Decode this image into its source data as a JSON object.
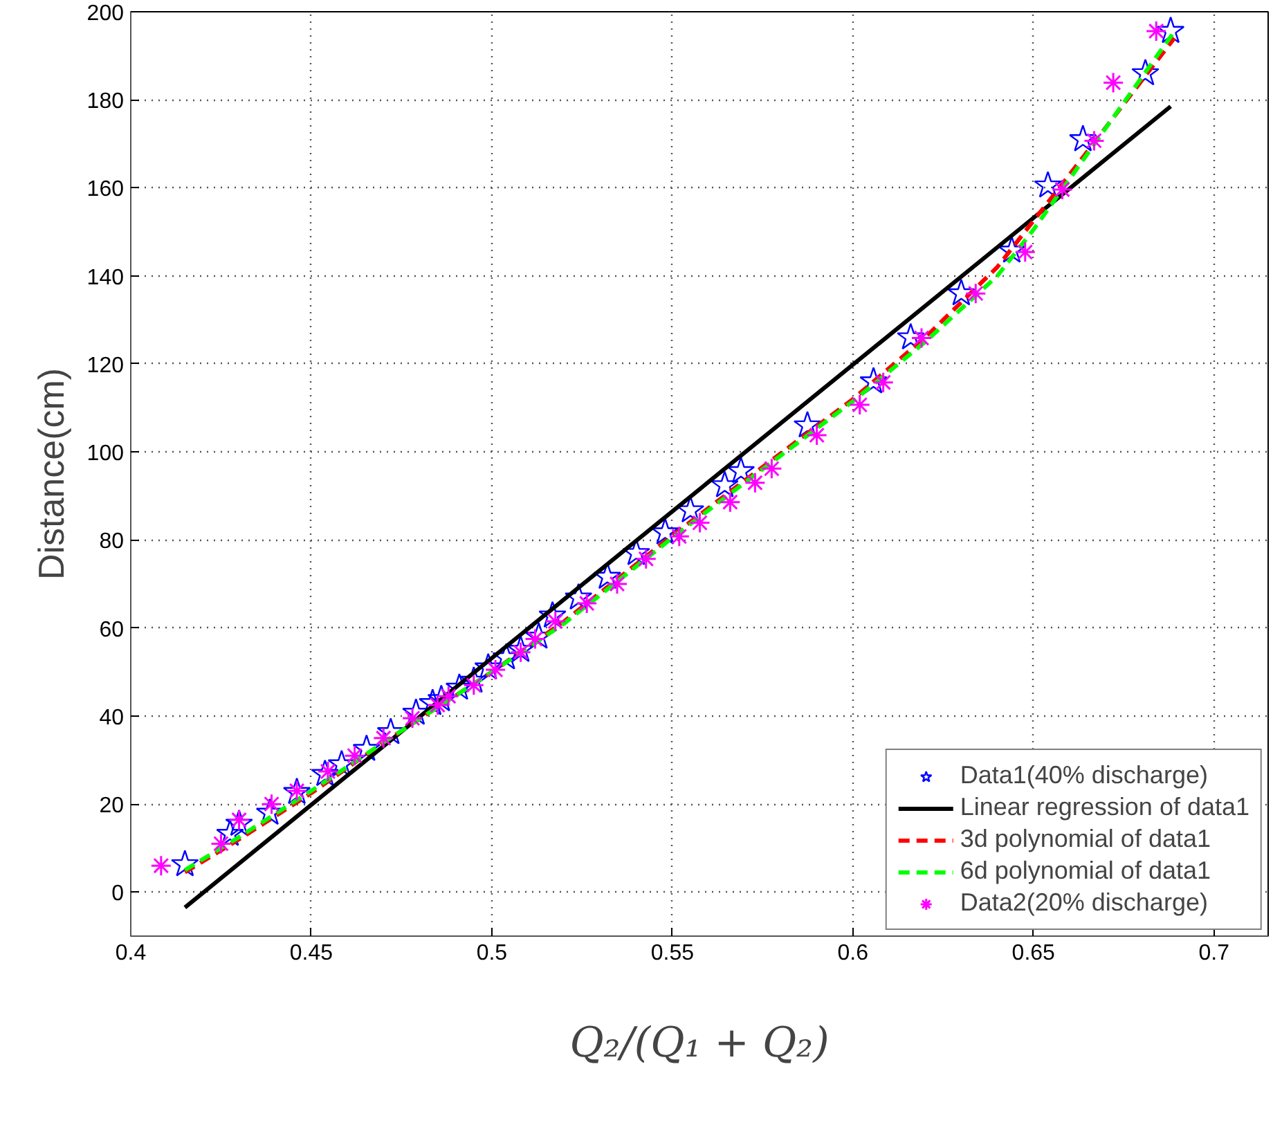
{
  "chart_data": {
    "type": "scatter",
    "xlabel": "Q₂/(Q₁ + Q₂)",
    "ylabel": "Distance(cm)",
    "xlim": [
      0.4,
      0.715
    ],
    "ylim": [
      -10,
      200
    ],
    "xticks": [
      0.4,
      0.45,
      0.5,
      0.55,
      0.6,
      0.65,
      0.7
    ],
    "yticks": [
      0,
      20,
      40,
      60,
      80,
      100,
      120,
      140,
      160,
      180,
      200
    ],
    "grid": true,
    "legend": "bottom right",
    "series": [
      {
        "name": "Data1(40% discharge)",
        "marker": "star",
        "color": "#0000ff",
        "x": [
          0.415,
          0.4275,
          0.43,
          0.4385,
          0.446,
          0.4538,
          0.4584,
          0.4653,
          0.472,
          0.479,
          0.4836,
          0.486,
          0.491,
          0.495,
          0.499,
          0.504,
          0.508,
          0.513,
          0.5168,
          0.524,
          0.532,
          0.54,
          0.548,
          0.555,
          0.5645,
          0.569,
          0.5874,
          0.6057,
          0.616,
          0.63,
          0.644,
          0.654,
          0.6637,
          0.681,
          0.688
        ],
        "values": [
          6.3,
          13.2,
          15.5,
          18,
          22.7,
          26.8,
          29,
          32.5,
          36.3,
          40.7,
          42.9,
          43.8,
          46.4,
          48,
          51,
          53.3,
          55,
          58,
          62.8,
          66.9,
          71.6,
          77,
          81.7,
          86.7,
          92.4,
          95.6,
          106,
          116,
          126,
          136,
          145.7,
          160.5,
          171,
          186,
          195.6
        ]
      },
      {
        "name": "Linear regression of data1",
        "type": "line",
        "line_style": "solid",
        "color": "#000000",
        "x": [
          0.415,
          0.688
        ],
        "values": [
          -3.5,
          178.5
        ]
      },
      {
        "name": "3d polynomial of data1",
        "type": "line",
        "line_style": "dashed",
        "color": "#ff0000",
        "x": [
          0.415,
          0.43,
          0.45,
          0.47,
          0.5,
          0.52,
          0.55,
          0.57,
          0.6,
          0.62,
          0.64,
          0.66,
          0.689
        ],
        "values": [
          4.5,
          12,
          22.5,
          34,
          50,
          61.5,
          81,
          93.5,
          112,
          126,
          142,
          163,
          194
        ]
      },
      {
        "name": "6d polynomial of data1",
        "type": "line",
        "line_style": "dashed",
        "color": "#00ff00",
        "x": [
          0.415,
          0.43,
          0.45,
          0.47,
          0.5,
          0.52,
          0.55,
          0.57,
          0.6,
          0.62,
          0.64,
          0.65,
          0.66,
          0.689
        ],
        "values": [
          5,
          12.5,
          23,
          34,
          50,
          61,
          80.5,
          93,
          111.5,
          125,
          140,
          150.5,
          162,
          195.5
        ]
      },
      {
        "name": "Data2(20% discharge)",
        "marker": "cross",
        "color": "#ff00ff",
        "x": [
          0.4084,
          0.425,
          0.43,
          0.439,
          0.446,
          0.4546,
          0.462,
          0.47,
          0.478,
          0.485,
          0.488,
          0.495,
          0.501,
          0.508,
          0.512,
          0.5176,
          0.5263,
          0.5347,
          0.5427,
          0.5519,
          0.5576,
          0.566,
          0.5729,
          0.5775,
          0.59,
          0.6019,
          0.6084,
          0.619,
          0.634,
          0.6477,
          0.658,
          0.6668,
          0.6721,
          0.684
        ],
        "values": [
          6,
          11,
          16.4,
          20,
          23,
          27.4,
          31,
          35,
          39.5,
          42.5,
          44.5,
          47,
          50.5,
          54.5,
          57.5,
          61.5,
          65.6,
          70,
          75.7,
          80.8,
          83.9,
          88.6,
          93,
          96.2,
          103.8,
          110.7,
          115.8,
          125.9,
          136,
          145.4,
          159.6,
          170.7,
          183.9,
          195.6
        ]
      }
    ]
  }
}
